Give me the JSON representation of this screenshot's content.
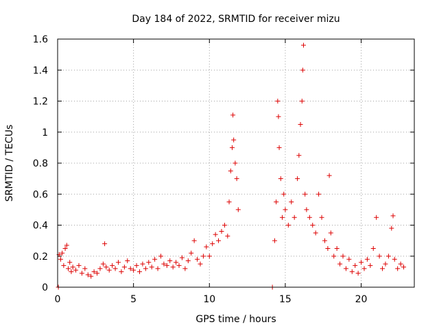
{
  "chart_data": {
    "type": "scatter",
    "title": "Day 184 of 2022, SRMTID for receiver mizu",
    "xlabel": "GPS time / hours",
    "ylabel": "SRMTID / TECUs",
    "xlim": [
      0,
      23.5
    ],
    "ylim": [
      0,
      1.6
    ],
    "xticks": [
      0,
      5,
      10,
      15,
      20
    ],
    "xtick_labels": [
      "0",
      "5",
      "10",
      "15",
      "20"
    ],
    "yticks": [
      0,
      0.2,
      0.4,
      0.6,
      0.8,
      1.0,
      1.2,
      1.4,
      1.6
    ],
    "ytick_labels": [
      "0",
      "0.2",
      "0.4",
      "0.6",
      "0.8",
      "1",
      "1.2",
      "1.4",
      "1.6"
    ],
    "grid": true,
    "marker": "plus",
    "color": "#dd0000",
    "series": [
      {
        "name": "SRMTID",
        "points": [
          [
            0.05,
            0.0
          ],
          [
            0.1,
            0.21
          ],
          [
            0.2,
            0.18
          ],
          [
            0.3,
            0.22
          ],
          [
            0.4,
            0.14
          ],
          [
            0.5,
            0.25
          ],
          [
            0.6,
            0.27
          ],
          [
            0.7,
            0.12
          ],
          [
            0.8,
            0.16
          ],
          [
            0.9,
            0.1
          ],
          [
            1.0,
            0.13
          ],
          [
            1.2,
            0.11
          ],
          [
            1.4,
            0.14
          ],
          [
            1.6,
            0.09
          ],
          [
            1.8,
            0.12
          ],
          [
            2.0,
            0.08
          ],
          [
            2.2,
            0.07
          ],
          [
            2.4,
            0.1
          ],
          [
            2.6,
            0.09
          ],
          [
            2.8,
            0.12
          ],
          [
            3.0,
            0.15
          ],
          [
            3.1,
            0.28
          ],
          [
            3.2,
            0.13
          ],
          [
            3.4,
            0.11
          ],
          [
            3.6,
            0.14
          ],
          [
            3.8,
            0.12
          ],
          [
            4.0,
            0.16
          ],
          [
            4.2,
            0.1
          ],
          [
            4.4,
            0.13
          ],
          [
            4.6,
            0.17
          ],
          [
            4.8,
            0.12
          ],
          [
            5.0,
            0.11
          ],
          [
            5.2,
            0.14
          ],
          [
            5.4,
            0.1
          ],
          [
            5.6,
            0.15
          ],
          [
            5.8,
            0.12
          ],
          [
            6.0,
            0.16
          ],
          [
            6.2,
            0.13
          ],
          [
            6.4,
            0.18
          ],
          [
            6.6,
            0.12
          ],
          [
            6.8,
            0.2
          ],
          [
            7.0,
            0.15
          ],
          [
            7.2,
            0.14
          ],
          [
            7.4,
            0.17
          ],
          [
            7.6,
            0.13
          ],
          [
            7.8,
            0.16
          ],
          [
            8.0,
            0.14
          ],
          [
            8.2,
            0.19
          ],
          [
            8.4,
            0.12
          ],
          [
            8.6,
            0.17
          ],
          [
            8.8,
            0.22
          ],
          [
            9.0,
            0.3
          ],
          [
            9.2,
            0.18
          ],
          [
            9.4,
            0.15
          ],
          [
            9.6,
            0.2
          ],
          [
            9.8,
            0.26
          ],
          [
            10.0,
            0.2
          ],
          [
            10.2,
            0.28
          ],
          [
            10.4,
            0.34
          ],
          [
            10.6,
            0.3
          ],
          [
            10.8,
            0.36
          ],
          [
            11.0,
            0.4
          ],
          [
            11.2,
            0.33
          ],
          [
            11.3,
            0.55
          ],
          [
            11.4,
            0.75
          ],
          [
            11.5,
            0.9
          ],
          [
            11.55,
            1.11
          ],
          [
            11.6,
            0.95
          ],
          [
            11.7,
            0.8
          ],
          [
            11.8,
            0.7
          ],
          [
            11.9,
            0.5
          ],
          [
            14.15,
            0.0
          ],
          [
            14.3,
            0.3
          ],
          [
            14.4,
            0.55
          ],
          [
            14.5,
            1.2
          ],
          [
            14.55,
            1.1
          ],
          [
            14.6,
            0.9
          ],
          [
            14.7,
            0.7
          ],
          [
            14.8,
            0.45
          ],
          [
            14.9,
            0.6
          ],
          [
            15.0,
            0.5
          ],
          [
            15.2,
            0.4
          ],
          [
            15.4,
            0.55
          ],
          [
            15.6,
            0.45
          ],
          [
            15.8,
            0.7
          ],
          [
            15.9,
            0.85
          ],
          [
            16.0,
            1.05
          ],
          [
            16.1,
            1.2
          ],
          [
            16.15,
            1.4
          ],
          [
            16.2,
            1.56
          ],
          [
            16.3,
            0.6
          ],
          [
            16.4,
            0.5
          ],
          [
            16.6,
            0.45
          ],
          [
            16.8,
            0.4
          ],
          [
            17.0,
            0.35
          ],
          [
            17.2,
            0.6
          ],
          [
            17.4,
            0.45
          ],
          [
            17.6,
            0.3
          ],
          [
            17.8,
            0.25
          ],
          [
            17.9,
            0.72
          ],
          [
            18.0,
            0.35
          ],
          [
            18.2,
            0.2
          ],
          [
            18.4,
            0.25
          ],
          [
            18.6,
            0.15
          ],
          [
            18.8,
            0.2
          ],
          [
            19.0,
            0.12
          ],
          [
            19.2,
            0.18
          ],
          [
            19.4,
            0.1
          ],
          [
            19.6,
            0.14
          ],
          [
            19.8,
            0.09
          ],
          [
            20.0,
            0.16
          ],
          [
            20.2,
            0.12
          ],
          [
            20.4,
            0.18
          ],
          [
            20.6,
            0.14
          ],
          [
            20.8,
            0.25
          ],
          [
            21.0,
            0.45
          ],
          [
            21.2,
            0.2
          ],
          [
            21.4,
            0.12
          ],
          [
            21.6,
            0.15
          ],
          [
            21.8,
            0.2
          ],
          [
            22.0,
            0.38
          ],
          [
            22.1,
            0.46
          ],
          [
            22.2,
            0.18
          ],
          [
            22.4,
            0.12
          ],
          [
            22.6,
            0.15
          ],
          [
            22.8,
            0.13
          ]
        ]
      }
    ]
  }
}
